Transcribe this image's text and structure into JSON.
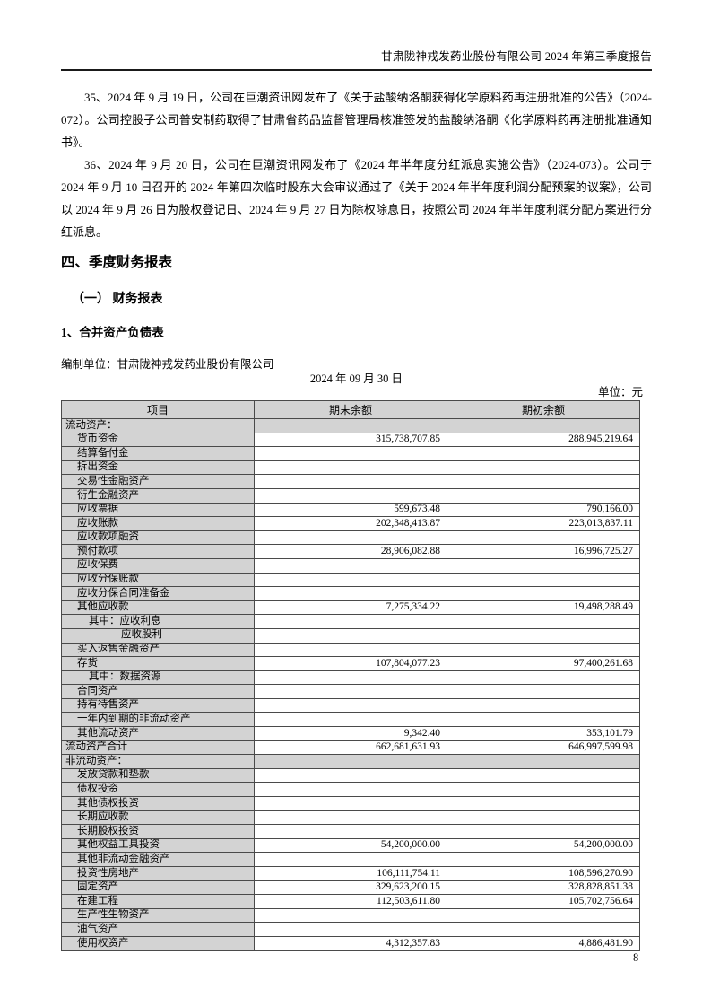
{
  "header": {
    "title": "甘肃陇神戎发药业股份有限公司 2024 年第三季度报告"
  },
  "paragraphs": [
    "35、2024 年 9 月 19 日，公司在巨潮资讯网发布了《关于盐酸纳洛酮获得化学原料药再注册批准的公告》（2024-072）。公司控股子公司普安制药取得了甘肃省药品监督管理局核准签发的盐酸纳洛酮《化学原料药再注册批准通知书》。",
    "36、2024 年 9 月 20 日，公司在巨潮资讯网发布了《2024 年半年度分红派息实施公告》（2024-073）。公司于 2024 年 9 月 10 日召开的 2024 年第四次临时股东大会审议通过了《关于 2024 年半年度利润分配预案的议案》，公司以 2024 年 9 月 26 日为股权登记日、2024 年 9 月 27 日为除权除息日，按照公司 2024 年半年度利润分配方案进行分红派息。"
  ],
  "headings": {
    "section": "四、季度财务报表",
    "subsection": "（一） 财务报表",
    "statement_title": "1、合并资产负债表"
  },
  "statement": {
    "prepared_by": "编制单位：甘肃陇神戎发药业股份有限公司",
    "date": "2024 年 09 月 30 日",
    "unit_label": "单位：元"
  },
  "balance_sheet": {
    "columns": [
      "项目",
      "期末余额",
      "期初余额"
    ],
    "rows": [
      {
        "item": "流动资产：",
        "end": "",
        "begin": "",
        "type": "section",
        "indent": 0
      },
      {
        "item": "货币资金",
        "end": "315,738,707.85",
        "begin": "288,945,219.64",
        "indent": 1
      },
      {
        "item": "结算备付金",
        "end": "",
        "begin": "",
        "indent": 1
      },
      {
        "item": "拆出资金",
        "end": "",
        "begin": "",
        "indent": 1
      },
      {
        "item": "交易性金融资产",
        "end": "",
        "begin": "",
        "indent": 1
      },
      {
        "item": "衍生金融资产",
        "end": "",
        "begin": "",
        "indent": 1
      },
      {
        "item": "应收票据",
        "end": "599,673.48",
        "begin": "790,166.00",
        "indent": 1
      },
      {
        "item": "应收账款",
        "end": "202,348,413.87",
        "begin": "223,013,837.11",
        "indent": 1
      },
      {
        "item": "应收款项融资",
        "end": "",
        "begin": "",
        "indent": 1
      },
      {
        "item": "预付款项",
        "end": "28,906,082.88",
        "begin": "16,996,725.27",
        "indent": 1
      },
      {
        "item": "应收保费",
        "end": "",
        "begin": "",
        "indent": 1
      },
      {
        "item": "应收分保账款",
        "end": "",
        "begin": "",
        "indent": 1
      },
      {
        "item": "应收分保合同准备金",
        "end": "",
        "begin": "",
        "indent": 1
      },
      {
        "item": "其他应收款",
        "end": "7,275,334.22",
        "begin": "19,498,288.49",
        "indent": 1
      },
      {
        "item": "其中：应收利息",
        "end": "",
        "begin": "",
        "indent": 2
      },
      {
        "item": "应收股利",
        "end": "",
        "begin": "",
        "indent": 3
      },
      {
        "item": "买入返售金融资产",
        "end": "",
        "begin": "",
        "indent": 1
      },
      {
        "item": "存货",
        "end": "107,804,077.23",
        "begin": "97,400,261.68",
        "indent": 1
      },
      {
        "item": "其中：数据资源",
        "end": "",
        "begin": "",
        "indent": 2
      },
      {
        "item": "合同资产",
        "end": "",
        "begin": "",
        "indent": 1
      },
      {
        "item": "持有待售资产",
        "end": "",
        "begin": "",
        "indent": 1
      },
      {
        "item": "一年内到期的非流动资产",
        "end": "",
        "begin": "",
        "indent": 1
      },
      {
        "item": "其他流动资产",
        "end": "9,342.40",
        "begin": "353,101.79",
        "indent": 1
      },
      {
        "item": "流动资产合计",
        "end": "662,681,631.93",
        "begin": "646,997,599.98",
        "indent": 0
      },
      {
        "item": "非流动资产：",
        "end": "",
        "begin": "",
        "type": "section",
        "indent": 0
      },
      {
        "item": "发放贷款和垫款",
        "end": "",
        "begin": "",
        "indent": 1
      },
      {
        "item": "债权投资",
        "end": "",
        "begin": "",
        "indent": 1
      },
      {
        "item": "其他债权投资",
        "end": "",
        "begin": "",
        "indent": 1
      },
      {
        "item": "长期应收款",
        "end": "",
        "begin": "",
        "indent": 1
      },
      {
        "item": "长期股权投资",
        "end": "",
        "begin": "",
        "indent": 1
      },
      {
        "item": "其他权益工具投资",
        "end": "54,200,000.00",
        "begin": "54,200,000.00",
        "indent": 1
      },
      {
        "item": "其他非流动金融资产",
        "end": "",
        "begin": "",
        "indent": 1
      },
      {
        "item": "投资性房地产",
        "end": "106,111,754.11",
        "begin": "108,596,270.90",
        "indent": 1
      },
      {
        "item": "固定资产",
        "end": "329,623,200.15",
        "begin": "328,828,851.38",
        "indent": 1
      },
      {
        "item": "在建工程",
        "end": "112,503,611.80",
        "begin": "105,702,756.64",
        "indent": 1
      },
      {
        "item": "生产性生物资产",
        "end": "",
        "begin": "",
        "indent": 1
      },
      {
        "item": "油气资产",
        "end": "",
        "begin": "",
        "indent": 1
      },
      {
        "item": "使用权资产",
        "end": "4,312,357.83",
        "begin": "4,886,481.90",
        "indent": 1
      }
    ]
  },
  "footer": {
    "page_number": "8"
  },
  "colors": {
    "table_shading": "#d3d3d3",
    "table_border": "#4a4a4a",
    "header_rule": "#1a1a1a"
  }
}
